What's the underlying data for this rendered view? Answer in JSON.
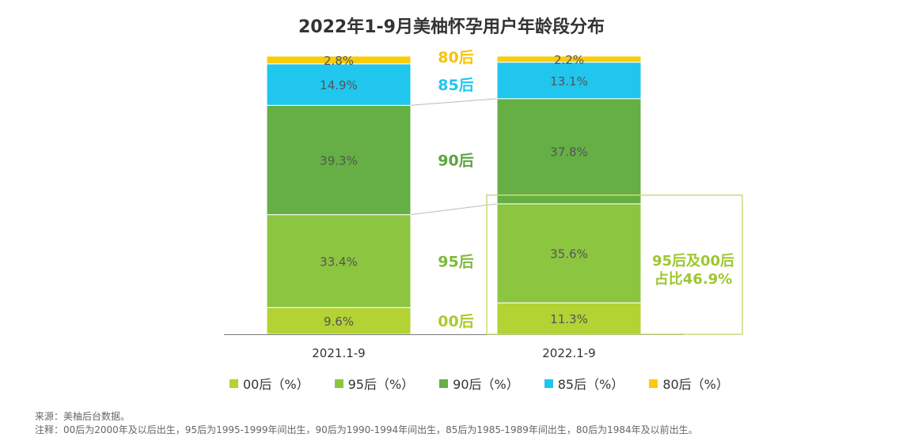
{
  "chart_data": {
    "type": "bar",
    "stacked": true,
    "title": "2022年1-9月美柚怀孕用户年龄段分布",
    "categories": [
      "2021.1-9",
      "2022.1-9"
    ],
    "series": [
      {
        "name": "00后",
        "legend": "00后（%）",
        "color": "#B3D234",
        "labelColor": "#A8CB2C",
        "values": [
          9.6,
          11.3
        ],
        "labels": [
          "9.6%",
          "11.3%"
        ]
      },
      {
        "name": "95后",
        "legend": "95后（%）",
        "color": "#8CC540",
        "labelColor": "#7DBB3A",
        "values": [
          33.4,
          35.6
        ],
        "labels": [
          "33.4%",
          "35.6%"
        ]
      },
      {
        "name": "90后",
        "legend": "90后（%）",
        "color": "#65AF45",
        "labelColor": "#5AA63D",
        "values": [
          39.3,
          37.8
        ],
        "labels": [
          "39.3%",
          "37.8%"
        ]
      },
      {
        "name": "85后",
        "legend": "85后（%）",
        "color": "#20C6EE",
        "labelColor": "#20C6EE",
        "values": [
          14.9,
          13.1
        ],
        "labels": [
          "14.9%",
          "13.1%"
        ]
      },
      {
        "name": "80后",
        "legend": "80后（%）",
        "color": "#FACC05",
        "labelColor": "#F5C400",
        "values": [
          2.8,
          2.2
        ],
        "labels": [
          "2.8%",
          "2.2%"
        ]
      }
    ],
    "ylim": [
      0,
      100
    ],
    "annotation": {
      "lines": [
        "95后及00后",
        "占比46.9%"
      ],
      "color": "#9DC72F"
    }
  },
  "notes": [
    "来源：美柚后台数据。",
    "注释：00后为2000年及以后出生，95后为1995-1999年间出生，90后为1990-1994年间出生，85后为1985-1989年间出生，80后为1984年及以前出生。"
  ]
}
